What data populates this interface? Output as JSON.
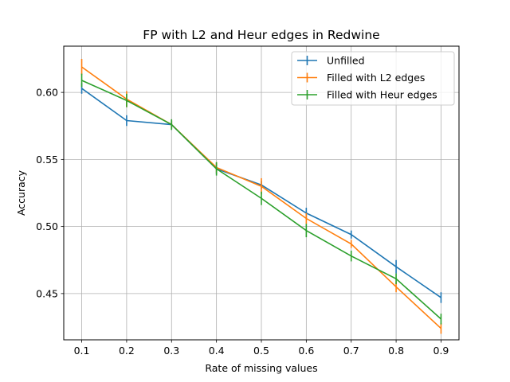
{
  "chart_data": {
    "type": "line",
    "title": "FP with L2 and Heur edges in Redwine",
    "xlabel": "Rate of missing values",
    "ylabel": "Accuracy",
    "x": [
      0.1,
      0.2,
      0.3,
      0.4,
      0.5,
      0.6,
      0.7,
      0.8,
      0.9
    ],
    "xticks": [
      "0.1",
      "0.2",
      "0.3",
      "0.4",
      "0.5",
      "0.6",
      "0.7",
      "0.8",
      "0.9"
    ],
    "yticks": [
      "0.45",
      "0.50",
      "0.55",
      "0.60"
    ],
    "ytick_values": [
      0.45,
      0.5,
      0.55,
      0.6
    ],
    "xlim": [
      0.06,
      0.94
    ],
    "ylim": [
      0.4155,
      0.6345
    ],
    "grid": true,
    "legend_position": "top-right",
    "series": [
      {
        "name": "Unfilled",
        "color": "#1f77b4",
        "values": [
          0.603,
          0.579,
          0.576,
          0.543,
          0.531,
          0.51,
          0.494,
          0.47,
          0.447
        ],
        "errors": [
          0.004,
          0.004,
          0.003,
          0.004,
          0.003,
          0.004,
          0.003,
          0.005,
          0.004
        ]
      },
      {
        "name": "Filled with L2 edges",
        "color": "#ff7f0e",
        "values": [
          0.619,
          0.595,
          0.576,
          0.544,
          0.53,
          0.506,
          0.487,
          0.455,
          0.424
        ],
        "errors": [
          0.006,
          0.006,
          0.003,
          0.004,
          0.006,
          0.004,
          0.003,
          0.004,
          0.004
        ]
      },
      {
        "name": "Filled with Heur edges",
        "color": "#2ca02c",
        "values": [
          0.609,
          0.594,
          0.576,
          0.543,
          0.521,
          0.497,
          0.478,
          0.461,
          0.431
        ],
        "errors": [
          0.005,
          0.005,
          0.004,
          0.005,
          0.005,
          0.005,
          0.004,
          0.004,
          0.004
        ]
      }
    ]
  }
}
